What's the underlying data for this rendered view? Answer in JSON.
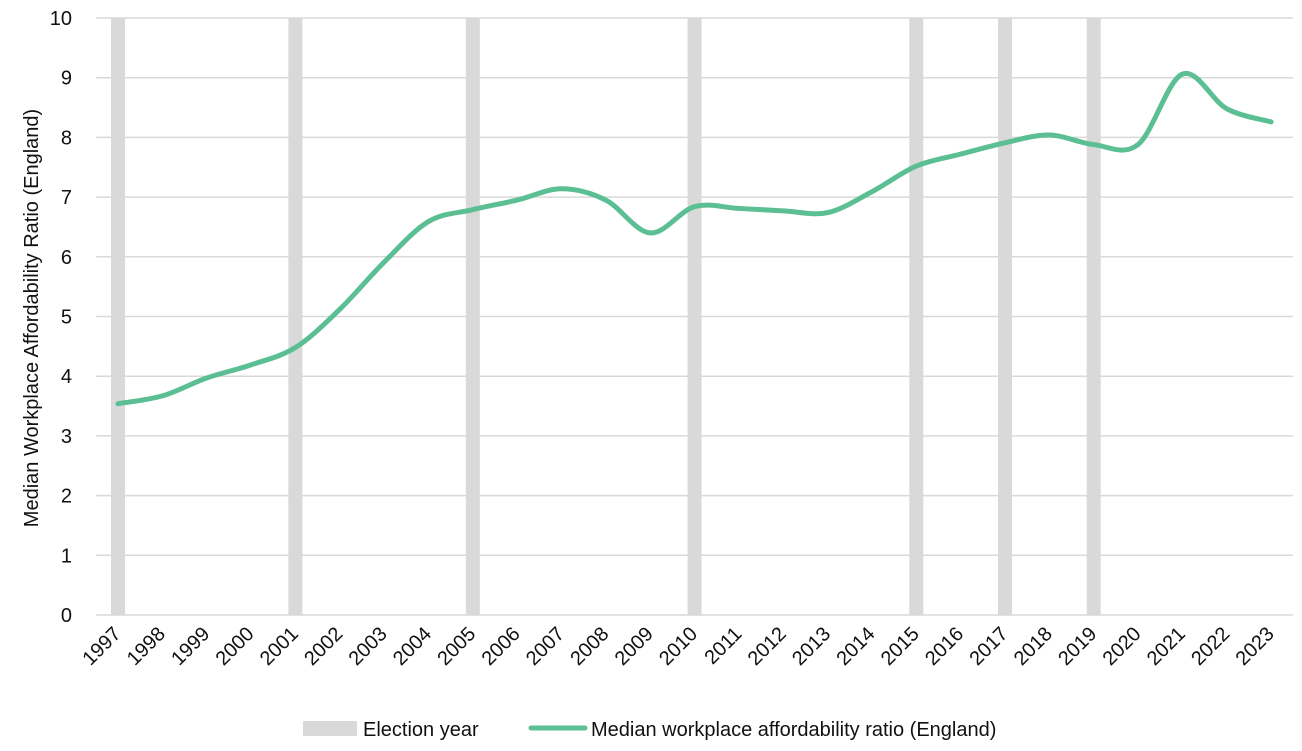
{
  "chart_data": {
    "type": "line",
    "ylabel": "Median Workplace Affordability Ratio (England)",
    "xlabel": "",
    "ylim": [
      0,
      10
    ],
    "yticks": [
      0,
      1,
      2,
      3,
      4,
      5,
      6,
      7,
      8,
      9,
      10
    ],
    "grid": "horizontal",
    "legend_position": "bottom",
    "x": [
      "1997",
      "1998",
      "1999",
      "2000",
      "2001",
      "2002",
      "2003",
      "2004",
      "2005",
      "2006",
      "2007",
      "2008",
      "2009",
      "2010",
      "2011",
      "2012",
      "2013",
      "2014",
      "2015",
      "2016",
      "2017",
      "2018",
      "2019",
      "2020",
      "2021",
      "2022",
      "2023"
    ],
    "series": [
      {
        "name": "Median workplace affordability ratio (England)",
        "color": "#5bbf93",
        "values": [
          3.54,
          3.67,
          3.97,
          4.19,
          4.48,
          5.12,
          5.91,
          6.59,
          6.79,
          6.95,
          7.14,
          6.95,
          6.4,
          6.84,
          6.81,
          6.77,
          6.74,
          7.09,
          7.52,
          7.72,
          7.91,
          8.04,
          7.88,
          7.88,
          9.06,
          8.48,
          8.26
        ]
      }
    ],
    "election_years": [
      "1997",
      "2001",
      "2005",
      "2010",
      "2015",
      "2017",
      "2019"
    ],
    "election_label": "Election year",
    "election_color": "#d9d9d9",
    "gridline_color": "#d9d9d9"
  }
}
